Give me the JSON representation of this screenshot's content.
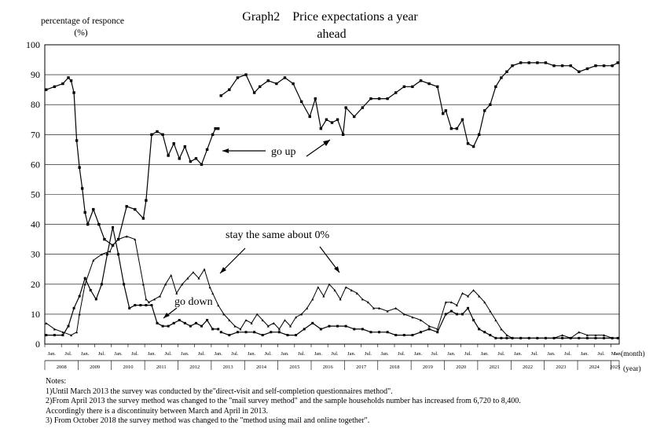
{
  "chart_data": {
    "type": "line",
    "title": "Graph2　Price expectations a year ahead",
    "title_line1": "Graph2　Price expectations a year",
    "title_line2": "ahead",
    "ylabel_line1": "percentage of responce",
    "ylabel_line2": "(%)",
    "xunit_month": "(month)",
    "xunit_year": "(year)",
    "ylim": [
      0,
      100
    ],
    "yticks": [
      0,
      10,
      20,
      30,
      40,
      50,
      60,
      70,
      80,
      90,
      100
    ],
    "grid": "horizontal",
    "x_start": "2008-01",
    "x_end": "2025-03",
    "month_tick_labels": [
      "Jan.",
      "Jul."
    ],
    "last_month_label": "Mar",
    "years": [
      "2008",
      "2009",
      "2010",
      "2011",
      "2012",
      "2013",
      "2014",
      "2015",
      "2016",
      "2017",
      "2018",
      "2019",
      "2020",
      "2021",
      "2022",
      "2023",
      "2024",
      "2025"
    ],
    "annotations": {
      "go_up": "go up",
      "stay_same": "stay the same about 0%",
      "go_down": "go down"
    },
    "series": [
      {
        "key": "go_up",
        "x": [
          "2008-01",
          "2008-04",
          "2008-07",
          "2008-09",
          "2008-10",
          "2008-11",
          "2008-12",
          "2009-01",
          "2009-02",
          "2009-03",
          "2009-04",
          "2009-06",
          "2009-08",
          "2009-10",
          "2010-01",
          "2010-03",
          "2010-06",
          "2010-09",
          "2010-12",
          "2011-01",
          "2011-03",
          "2011-05",
          "2011-07",
          "2011-09",
          "2011-11",
          "2012-01",
          "2012-03",
          "2012-05",
          "2012-07",
          "2012-09",
          "2012-11",
          "2013-01",
          "2013-02",
          "2013-03",
          null,
          "2013-04",
          "2013-07",
          "2013-10",
          "2014-01",
          "2014-04",
          "2014-06",
          "2014-09",
          "2014-12",
          "2015-03",
          "2015-06",
          "2015-09",
          "2015-12",
          "2016-02",
          "2016-04",
          "2016-06",
          "2016-08",
          "2016-10",
          "2016-12",
          "2017-01",
          "2017-04",
          "2017-07",
          "2017-10",
          "2018-01",
          "2018-04",
          "2018-07",
          "2018-10",
          "2019-01",
          "2019-04",
          "2019-07",
          "2019-10",
          "2019-12",
          "2020-01",
          "2020-03",
          "2020-05",
          "2020-07",
          "2020-09",
          "2020-11",
          "2021-01",
          "2021-03",
          "2021-05",
          "2021-07",
          "2021-09",
          "2021-11",
          "2022-01",
          "2022-04",
          "2022-07",
          "2022-10",
          "2023-01",
          "2023-04",
          "2023-07",
          "2023-10",
          "2024-01",
          "2024-04",
          "2024-07",
          "2024-10",
          "2025-01",
          "2025-03"
        ],
        "y": [
          85,
          86,
          87,
          89,
          88,
          84,
          68,
          59,
          52,
          44,
          40,
          45,
          40,
          35,
          33,
          35,
          46,
          45,
          42,
          48,
          70,
          71,
          70,
          63,
          67,
          62,
          66,
          61,
          62,
          60,
          65,
          70,
          72,
          72,
          null,
          83,
          85,
          89,
          90,
          84,
          86,
          88,
          87,
          89,
          87,
          81,
          76,
          82,
          72,
          75,
          74,
          75,
          70,
          79,
          76,
          79,
          82,
          82,
          82,
          84,
          86,
          86,
          88,
          87,
          86,
          77,
          78,
          72,
          72,
          75,
          67,
          66,
          70,
          78,
          80,
          86,
          89,
          91,
          93,
          94,
          94,
          94,
          94,
          93,
          93,
          93,
          91,
          92,
          93,
          93,
          93,
          94
        ]
      },
      {
        "key": "stay_same",
        "x": [
          "2008-01",
          "2008-04",
          "2008-07",
          "2008-10",
          "2008-12",
          "2009-01",
          "2009-03",
          "2009-06",
          "2009-09",
          "2009-12",
          "2010-01",
          "2010-03",
          "2010-06",
          "2010-09",
          "2010-12",
          "2011-01",
          "2011-02",
          "2011-04",
          "2011-06",
          "2011-08",
          "2011-10",
          "2011-12",
          "2012-02",
          "2012-04",
          "2012-06",
          "2012-08",
          "2012-10",
          "2012-12",
          "2013-01",
          "2013-03",
          "2013-05",
          "2013-07",
          "2013-09",
          "2013-11",
          "2014-01",
          "2014-03",
          "2014-05",
          "2014-07",
          "2014-09",
          "2014-11",
          "2015-01",
          "2015-03",
          "2015-05",
          "2015-07",
          "2015-09",
          "2015-11",
          "2016-01",
          "2016-03",
          "2016-05",
          "2016-07",
          "2016-09",
          "2016-11",
          "2017-01",
          "2017-03",
          "2017-05",
          "2017-07",
          "2017-09",
          "2017-11",
          "2018-01",
          "2018-04",
          "2018-07",
          "2018-10",
          "2019-01",
          "2019-04",
          "2019-07",
          "2019-10",
          "2020-01",
          "2020-03",
          "2020-05",
          "2020-07",
          "2020-09",
          "2020-11",
          "2021-01",
          "2021-03",
          "2021-05",
          "2021-07",
          "2021-09",
          "2021-11",
          "2022-01",
          "2022-04",
          "2022-07",
          "2022-10",
          "2023-01",
          "2023-04",
          "2023-07",
          "2023-10",
          "2024-01",
          "2024-04",
          "2024-07",
          "2024-10",
          "2025-01",
          "2025-03"
        ],
        "y": [
          7,
          5,
          4,
          3,
          4,
          10,
          20,
          28,
          30,
          31,
          33,
          35,
          36,
          35,
          20,
          15,
          14,
          15,
          16,
          20,
          23,
          17,
          20,
          22,
          24,
          22,
          25,
          19,
          17,
          13,
          10,
          8,
          6,
          5,
          8,
          7,
          10,
          8,
          6,
          7,
          5,
          8,
          6,
          9,
          10,
          12,
          15,
          19,
          16,
          20,
          18,
          15,
          19,
          18,
          17,
          15,
          14,
          12,
          12,
          11,
          12,
          10,
          9,
          8,
          6,
          5,
          14,
          14,
          13,
          17,
          16,
          18,
          16,
          14,
          11,
          8,
          5,
          3,
          2,
          2,
          2,
          2,
          2,
          2,
          3,
          2,
          4,
          3,
          3,
          3,
          2,
          2
        ]
      },
      {
        "key": "go_down",
        "x": [
          "2008-01",
          "2008-04",
          "2008-07",
          "2008-09",
          "2008-11",
          "2009-01",
          "2009-03",
          "2009-05",
          "2009-07",
          "2009-09",
          "2009-11",
          "2010-01",
          "2010-03",
          "2010-05",
          "2010-07",
          "2010-09",
          "2010-11",
          "2011-01",
          "2011-03",
          "2011-05",
          "2011-07",
          "2011-09",
          "2011-11",
          "2012-01",
          "2012-03",
          "2012-05",
          "2012-07",
          "2012-09",
          "2012-11",
          "2013-01",
          "2013-03",
          null,
          "2013-04",
          "2013-07",
          "2013-10",
          "2014-01",
          "2014-04",
          "2014-07",
          "2014-10",
          "2015-01",
          "2015-04",
          "2015-07",
          "2015-10",
          "2016-01",
          "2016-04",
          "2016-07",
          "2016-10",
          "2017-01",
          "2017-04",
          "2017-07",
          "2017-10",
          "2018-01",
          "2018-04",
          "2018-07",
          "2018-10",
          "2019-01",
          "2019-04",
          "2019-07",
          "2019-10",
          "2020-01",
          "2020-03",
          "2020-05",
          "2020-07",
          "2020-09",
          "2020-11",
          "2021-01",
          "2021-03",
          "2021-05",
          "2021-07",
          "2021-09",
          "2021-11",
          "2022-01",
          "2022-04",
          "2022-07",
          "2022-10",
          "2023-01",
          "2023-04",
          "2023-07",
          "2023-10",
          "2024-01",
          "2024-04",
          "2024-07",
          "2024-10",
          "2025-01",
          "2025-03"
        ],
        "y": [
          3,
          3,
          3,
          6,
          12,
          16,
          22,
          18,
          15,
          20,
          30,
          39,
          30,
          20,
          12,
          13,
          13,
          13,
          13,
          7,
          6,
          6,
          7,
          8,
          7,
          6,
          7,
          6,
          8,
          5,
          5,
          null,
          4,
          3,
          4,
          4,
          4,
          3,
          4,
          4,
          3,
          3,
          5,
          7,
          5,
          6,
          6,
          6,
          5,
          5,
          4,
          4,
          4,
          3,
          3,
          3,
          4,
          5,
          4,
          10,
          11,
          10,
          10,
          12,
          8,
          5,
          4,
          3,
          2,
          2,
          2,
          2,
          2,
          2,
          2,
          2,
          2,
          2,
          2,
          2,
          2,
          2,
          2,
          2,
          2
        ]
      }
    ]
  },
  "notes": {
    "heading": "Notes:",
    "note1": "1)Until March 2013 the survey was conducted by the\"direct-visit and self-completion questionnaires method\".",
    "note2": "2)From April 2013 the survey method was changed to the \"mail survey method\" and the sample households number has increased from 6,720 to 8,400.",
    "note2b": "Accordingly there is a discontinuity between March and April in 2013.",
    "note3": "3) From October 2018 the survey method was changed to the \"method using mail and online together\"."
  }
}
